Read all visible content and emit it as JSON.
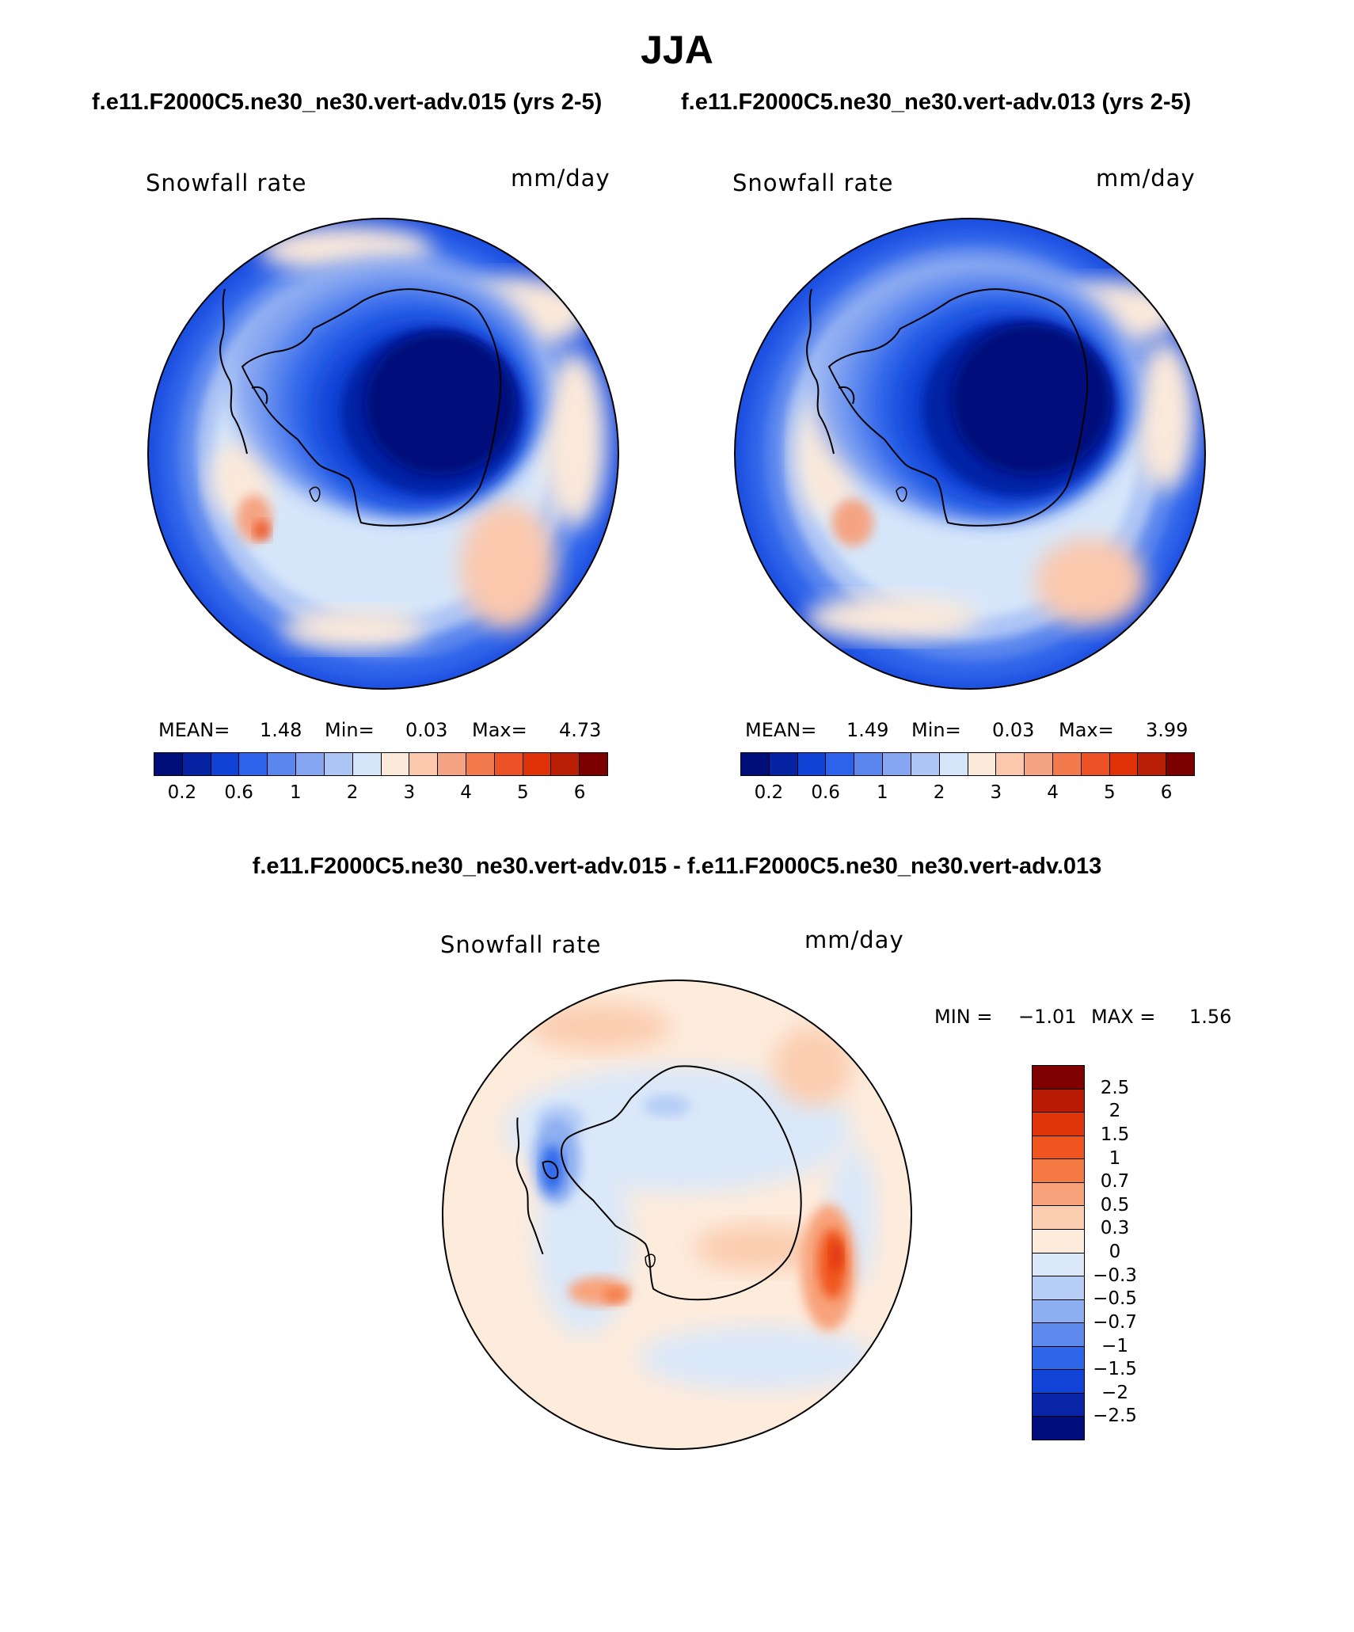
{
  "header": {
    "season": "JJA",
    "case_left": "f.e11.F2000C5.ne30_ne30.vert-adv.015 (yrs 2-5)",
    "case_right": "f.e11.F2000C5.ne30_ne30.vert-adv.013 (yrs 2-5)",
    "diff_title": "f.e11.F2000C5.ne30_ne30.vert-adv.015 - f.e11.F2000C5.ne30_ne30.vert-adv.013"
  },
  "panels": [
    {
      "variable": "Snowfall rate",
      "units": "mm/day",
      "mean_label": "MEAN=",
      "mean": "1.48",
      "min_label": "Min=",
      "min": "0.03",
      "max_label": "Max=",
      "max": "4.73"
    },
    {
      "variable": "Snowfall rate",
      "units": "mm/day",
      "mean_label": "MEAN=",
      "mean": "1.49",
      "min_label": "Min=",
      "min": "0.03",
      "max_label": "Max=",
      "max": "3.99"
    }
  ],
  "diff_panel": {
    "variable": "Snowfall rate",
    "units": "mm/day",
    "min_label": "MIN =",
    "min": "−1.01",
    "max_label": "MAX =",
    "max": "1.56"
  },
  "colorbar_main": {
    "colors": [
      "#000e7a",
      "#0623a4",
      "#1142d6",
      "#2d63ea",
      "#5a86ee",
      "#86a6f1",
      "#adc5f5",
      "#d6e6fa",
      "#fbe9da",
      "#fbc8ad",
      "#f5a483",
      "#f27a4d",
      "#ec5226",
      "#df3209",
      "#b91f05",
      "#7d0000"
    ],
    "tick_labels": [
      "0.2",
      "0.6",
      "1",
      "2",
      "3",
      "4",
      "5",
      "6"
    ]
  },
  "colorbar_diff": {
    "colors": [
      "#800000",
      "#b81a04",
      "#e0350a",
      "#f0541f",
      "#f57a44",
      "#f8a37c",
      "#fbcdb0",
      "#fdebdc",
      "#dae8f9",
      "#b6cdf6",
      "#8daef1",
      "#5e8aee",
      "#2e67ea",
      "#1243d7",
      "#0725a6",
      "#000e7d"
    ],
    "tick_labels": [
      "2.5",
      "2",
      "1.5",
      "1",
      "0.7",
      "0.5",
      "0.3",
      "0",
      "−0.3",
      "−0.5",
      "−0.7",
      "−1",
      "−1.5",
      "−2",
      "−2.5"
    ]
  }
}
